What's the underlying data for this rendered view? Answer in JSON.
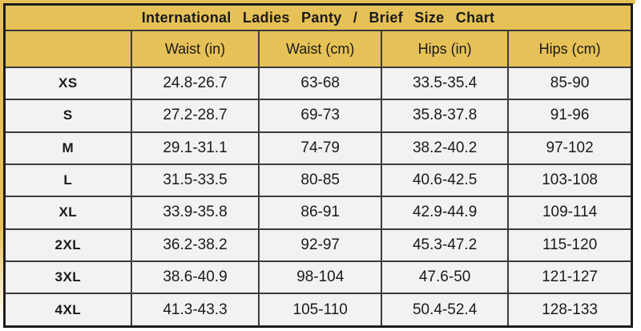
{
  "title": "International Ladies Panty / Brief Size Chart",
  "colors": {
    "gold": "#e6c157",
    "row_background": "#f2f2f2",
    "grid_border": "#3b3b3b",
    "outer_border": "#1d1d1d",
    "text": "#1a1a1a"
  },
  "chart_data": {
    "type": "table",
    "title": "International Ladies Panty / Brief Size Chart",
    "columns": [
      "",
      "Waist (in)",
      "Waist (cm)",
      "Hips (in)",
      "Hips (cm)"
    ],
    "rows": [
      [
        "XS",
        "24.8-26.7",
        "63-68",
        "33.5-35.4",
        "85-90"
      ],
      [
        "S",
        "27.2-28.7",
        "69-73",
        "35.8-37.8",
        "91-96"
      ],
      [
        "M",
        "29.1-31.1",
        "74-79",
        "38.2-40.2",
        "97-102"
      ],
      [
        "L",
        "31.5-33.5",
        "80-85",
        "40.6-42.5",
        "103-108"
      ],
      [
        "XL",
        "33.9-35.8",
        "86-91",
        "42.9-44.9",
        "109-114"
      ],
      [
        "2XL",
        "36.2-38.2",
        "92-97",
        "45.3-47.2",
        "115-120"
      ],
      [
        "3XL",
        "38.6-40.9",
        "98-104",
        "47.6-50",
        "121-127"
      ],
      [
        "4XL",
        "41.3-43.3",
        "105-110",
        "50.4-52.4",
        "128-133"
      ]
    ]
  }
}
